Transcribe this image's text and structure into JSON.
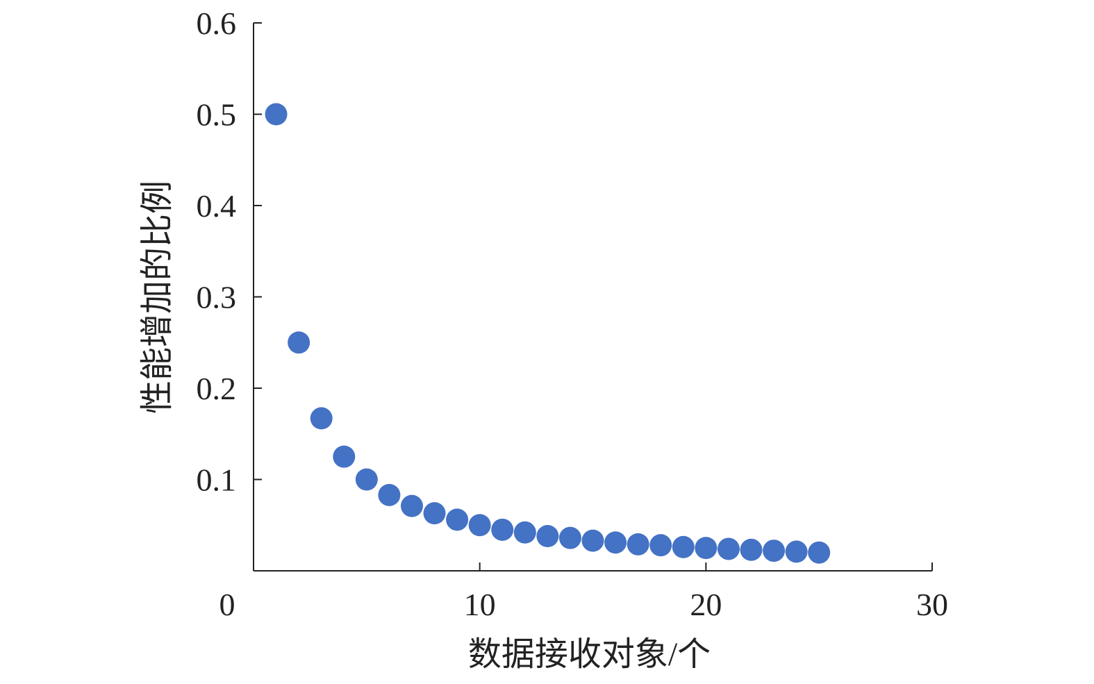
{
  "chart_data": {
    "type": "scatter",
    "title": "",
    "xlabel": "数据接收对象/个",
    "ylabel": "性能增加的比例",
    "xlim": [
      0,
      30
    ],
    "ylim": [
      0,
      0.6
    ],
    "x_ticks": [
      0,
      10,
      20,
      30
    ],
    "x_tick_labels": [
      "0",
      "10",
      "20",
      "30"
    ],
    "y_ticks": [
      0.1,
      0.2,
      0.3,
      0.4,
      0.5,
      0.6
    ],
    "y_tick_labels": [
      "0.1",
      "0.2",
      "0.3",
      "0.4",
      "0.5",
      "0.6"
    ],
    "grid": false,
    "legend": "none",
    "marker_color": "#4472C4",
    "series": [
      {
        "x": [
          1,
          2,
          3,
          4,
          5,
          6,
          7,
          8,
          9,
          10,
          11,
          12,
          13,
          14,
          15,
          16,
          17,
          18,
          19,
          20,
          21,
          22,
          23,
          24,
          25
        ],
        "y": [
          0.5,
          0.25,
          0.167,
          0.125,
          0.1,
          0.083,
          0.071,
          0.063,
          0.056,
          0.05,
          0.045,
          0.042,
          0.038,
          0.036,
          0.033,
          0.031,
          0.029,
          0.028,
          0.026,
          0.025,
          0.024,
          0.023,
          0.022,
          0.021,
          0.02
        ]
      }
    ]
  }
}
